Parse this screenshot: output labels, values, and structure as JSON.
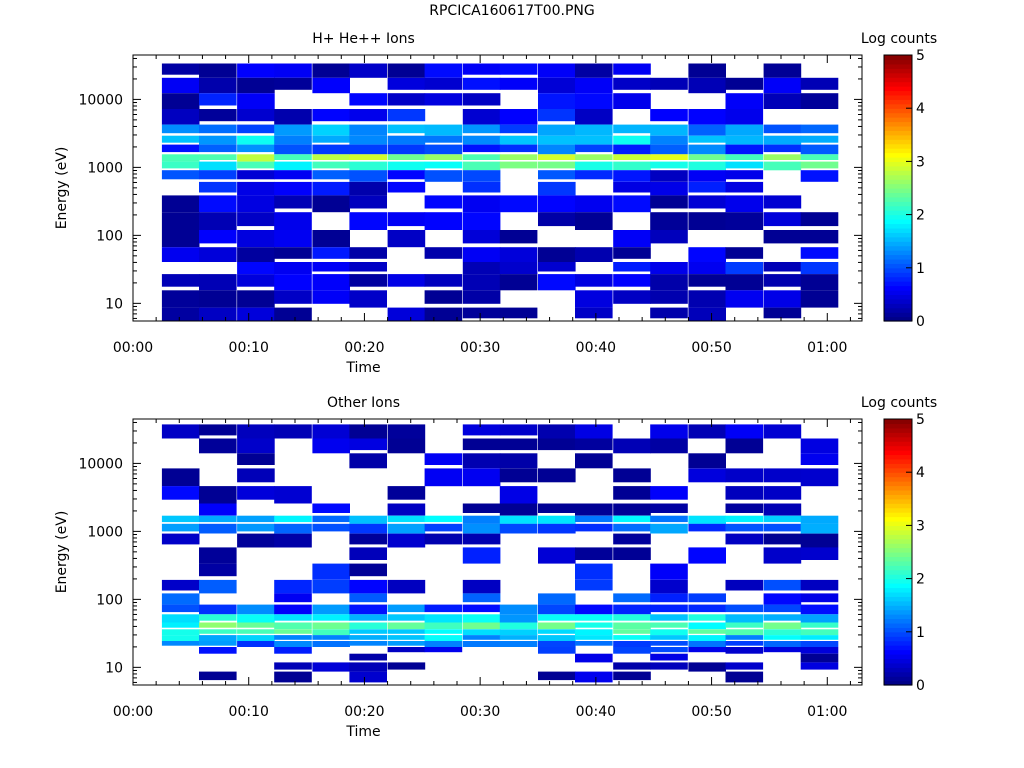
{
  "figure": {
    "title": "RPCICA160617T00.PNG"
  },
  "chart_data": [
    {
      "type": "heatmap",
      "title": "H+ He++ Ions",
      "xlabel": "Time",
      "ylabel": "Energy (eV)",
      "x_ticks": [
        "00:00",
        "00:10",
        "00:20",
        "00:30",
        "00:40",
        "00:50",
        "01:00"
      ],
      "xlim_minutes": [
        0,
        63
      ],
      "y_scale": "log",
      "y_ticks": [
        10,
        100,
        1000,
        10000
      ],
      "ylim": [
        5.5,
        45000
      ],
      "colorbar": {
        "label": "Log counts",
        "ticks": [
          0,
          1,
          2,
          3,
          4,
          5
        ],
        "range": [
          0,
          5
        ],
        "colormap": "jet"
      },
      "time_bins_minutes": [
        2.5,
        5.7,
        9.0,
        12.2,
        15.5,
        18.7,
        22.0,
        25.2,
        28.5,
        31.7,
        35.0,
        38.2,
        41.5,
        44.7,
        48.0,
        51.2,
        54.5,
        57.7
      ],
      "bin_width_minutes": 3.25,
      "energy_profile": [
        {
          "e": 27000,
          "c": 0.3
        },
        {
          "e": 16000,
          "c": 0.3
        },
        {
          "e": 9500,
          "c": 0.4
        },
        {
          "e": 5500,
          "c": 0.5
        },
        {
          "e": 3300,
          "c": 1.3
        },
        {
          "e": 2600,
          "c": 1.6
        },
        {
          "e": 1800,
          "c": 1.0
        },
        {
          "e": 1350,
          "c": 2.6
        },
        {
          "e": 1100,
          "c": 2.1
        },
        {
          "e": 750,
          "c": 0.7
        },
        {
          "e": 500,
          "c": 0.5
        },
        {
          "e": 300,
          "c": 0.4
        },
        {
          "e": 160,
          "c": 0.35
        },
        {
          "e": 90,
          "c": 0.3
        },
        {
          "e": 50,
          "c": 0.35
        },
        {
          "e": 33,
          "c": 0.55
        },
        {
          "e": 22,
          "c": 0.3
        },
        {
          "e": 11,
          "c": 0.2
        },
        {
          "e": 6.8,
          "c": 0.2
        }
      ],
      "fill_fraction": 0.8,
      "seed": 11
    },
    {
      "type": "heatmap",
      "title": "Other Ions",
      "xlabel": "Time",
      "ylabel": "Energy (eV)",
      "x_ticks": [
        "00:00",
        "00:10",
        "00:20",
        "00:30",
        "00:40",
        "00:50",
        "01:00"
      ],
      "xlim_minutes": [
        0,
        63
      ],
      "y_scale": "log",
      "y_ticks": [
        10,
        100,
        1000,
        10000
      ],
      "ylim": [
        5.5,
        45000
      ],
      "colorbar": {
        "label": "Log counts",
        "ticks": [
          0,
          1,
          2,
          3,
          4,
          5
        ],
        "range": [
          0,
          5
        ],
        "colormap": "jet"
      },
      "time_bins_minutes": [
        2.5,
        5.7,
        9.0,
        12.2,
        15.5,
        18.7,
        22.0,
        25.2,
        28.5,
        31.7,
        35.0,
        38.2,
        41.5,
        44.7,
        48.0,
        51.2,
        54.5,
        57.7
      ],
      "bin_width_minutes": 3.25,
      "energy_profile": [
        {
          "e": 30000,
          "c": 0.2
        },
        {
          "e": 18000,
          "c": 0.2
        },
        {
          "e": 11000,
          "c": 0.2
        },
        {
          "e": 6500,
          "c": 0.2
        },
        {
          "e": 3300,
          "c": 0.3
        },
        {
          "e": 2000,
          "c": 0.3
        },
        {
          "e": 1450,
          "c": 1.5
        },
        {
          "e": 1150,
          "c": 1.2
        },
        {
          "e": 750,
          "c": 0.3
        },
        {
          "e": 450,
          "c": 0.4
        },
        {
          "e": 250,
          "c": 0.5
        },
        {
          "e": 150,
          "c": 0.7
        },
        {
          "e": 100,
          "c": 0.8
        },
        {
          "e": 70,
          "c": 1.0
        },
        {
          "e": 52,
          "c": 1.7
        },
        {
          "e": 40,
          "c": 2.2
        },
        {
          "e": 33,
          "c": 2.0
        },
        {
          "e": 27,
          "c": 1.6
        },
        {
          "e": 22,
          "c": 1.2
        },
        {
          "e": 18,
          "c": 0.7
        },
        {
          "e": 14,
          "c": 0.3
        },
        {
          "e": 10,
          "c": 0.25
        },
        {
          "e": 7.5,
          "c": 0.2
        }
      ],
      "fill_fraction": 0.55,
      "seed": 29
    }
  ]
}
